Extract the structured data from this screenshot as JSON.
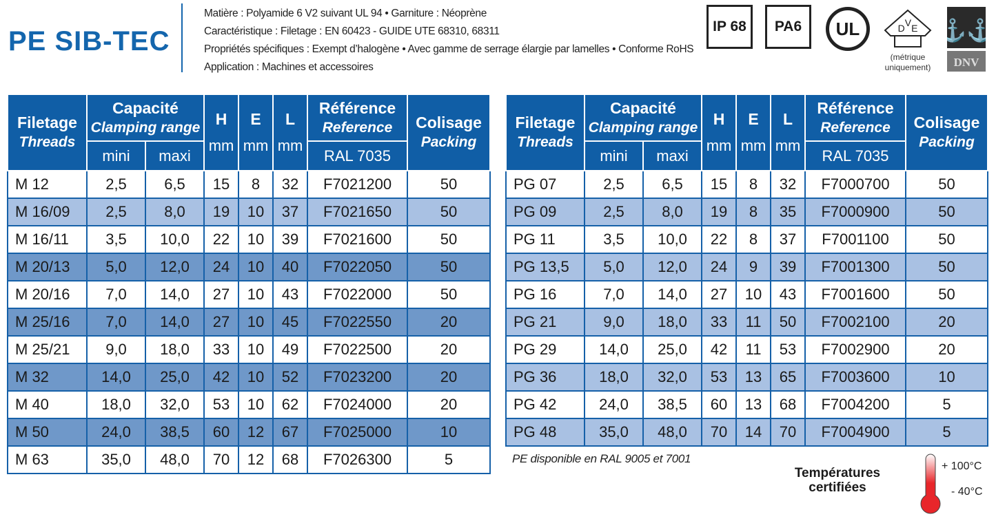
{
  "title": "PE SIB-TEC",
  "specs": [
    "Matière : Polyamide 6 V2 suivant UL 94 • Garniture : Néoprène",
    "Caractéristique : Filetage : EN 60423 - GUIDE UTE 68310, 68311",
    "Propriétés spécifiques : Exempt d’halogène • Avec gamme de serrage élargie par lamelles • Conforme RoHS",
    "Application : Machines et accessoires"
  ],
  "logos": {
    "ip": "IP 68",
    "pa": "PA6",
    "ul": "UL",
    "vde": "VDE",
    "vde_caption": "(métrique uniquement)",
    "dnv": "DNV"
  },
  "colors": {
    "header": "#105ea6",
    "row_light": "#a9c1e3",
    "row_dark": "#6f98c9",
    "title": "#1466ad"
  },
  "headers": {
    "filetage": "Filetage",
    "threads": "Threads",
    "capacite": "Capacité",
    "clamping": "Clamping range",
    "mini": "mini",
    "maxi": "maxi",
    "h": "H",
    "e": "E",
    "l": "L",
    "mm": "mm",
    "reference_fr": "Référence",
    "reference_en": "Reference",
    "ral": "RAL 7035",
    "colisage": "Colisage",
    "packing": "Packing"
  },
  "table_metric": [
    {
      "style": "white",
      "cells": [
        "M 12",
        "2,5",
        "6,5",
        "15",
        "8",
        "32",
        "F7021200",
        "50"
      ]
    },
    {
      "style": "light",
      "cells": [
        "M 16/09",
        "2,5",
        "8,0",
        "19",
        "10",
        "37",
        "F7021650",
        "50"
      ]
    },
    {
      "style": "white",
      "cells": [
        "M 16/11",
        "3,5",
        "10,0",
        "22",
        "10",
        "39",
        "F7021600",
        "50"
      ]
    },
    {
      "style": "dark",
      "cells": [
        "M 20/13",
        "5,0",
        "12,0",
        "24",
        "10",
        "40",
        "F7022050",
        "50"
      ]
    },
    {
      "style": "white",
      "cells": [
        "M 20/16",
        "7,0",
        "14,0",
        "27",
        "10",
        "43",
        "F7022000",
        "50"
      ]
    },
    {
      "style": "dark",
      "cells": [
        "M 25/16",
        "7,0",
        "14,0",
        "27",
        "10",
        "45",
        "F7022550",
        "20"
      ]
    },
    {
      "style": "white",
      "cells": [
        "M 25/21",
        "9,0",
        "18,0",
        "33",
        "10",
        "49",
        "F7022500",
        "20"
      ]
    },
    {
      "style": "dark",
      "cells": [
        "M 32",
        "14,0",
        "25,0",
        "42",
        "10",
        "52",
        "F7023200",
        "20"
      ]
    },
    {
      "style": "white",
      "cells": [
        "M 40",
        "18,0",
        "32,0",
        "53",
        "10",
        "62",
        "F7024000",
        "20"
      ]
    },
    {
      "style": "dark",
      "cells": [
        "M 50",
        "24,0",
        "38,5",
        "60",
        "12",
        "67",
        "F7025000",
        "10"
      ]
    },
    {
      "style": "white",
      "cells": [
        "M 63",
        "35,0",
        "48,0",
        "70",
        "12",
        "68",
        "F7026300",
        "5"
      ]
    }
  ],
  "table_pg": [
    {
      "style": "white",
      "cells": [
        "PG 07",
        "2,5",
        "6,5",
        "15",
        "8",
        "32",
        "F7000700",
        "50"
      ]
    },
    {
      "style": "light",
      "cells": [
        "PG 09",
        "2,5",
        "8,0",
        "19",
        "8",
        "35",
        "F7000900",
        "50"
      ]
    },
    {
      "style": "white",
      "cells": [
        "PG 11",
        "3,5",
        "10,0",
        "22",
        "8",
        "37",
        "F7001100",
        "50"
      ]
    },
    {
      "style": "light",
      "cells": [
        "PG 13,5",
        "5,0",
        "12,0",
        "24",
        "9",
        "39",
        "F7001300",
        "50"
      ]
    },
    {
      "style": "white",
      "cells": [
        "PG 16",
        "7,0",
        "14,0",
        "27",
        "10",
        "43",
        "F7001600",
        "50"
      ]
    },
    {
      "style": "light",
      "cells": [
        "PG 21",
        "9,0",
        "18,0",
        "33",
        "11",
        "50",
        "F7002100",
        "20"
      ]
    },
    {
      "style": "white",
      "cells": [
        "PG 29",
        "14,0",
        "25,0",
        "42",
        "11",
        "53",
        "F7002900",
        "20"
      ]
    },
    {
      "style": "light",
      "cells": [
        "PG 36",
        "18,0",
        "32,0",
        "53",
        "13",
        "65",
        "F7003600",
        "10"
      ]
    },
    {
      "style": "white",
      "cells": [
        "PG 42",
        "24,0",
        "38,5",
        "60",
        "13",
        "68",
        "F7004200",
        "5"
      ]
    },
    {
      "style": "light",
      "cells": [
        "PG 48",
        "35,0",
        "48,0",
        "70",
        "14",
        "70",
        "F7004900",
        "5"
      ]
    }
  ],
  "note": "PE disponible en RAL 9005 et 7001",
  "temperature": {
    "label_1": "Températures",
    "label_2": "certifiées",
    "max": "+ 100°C",
    "min": "- 40°C"
  }
}
